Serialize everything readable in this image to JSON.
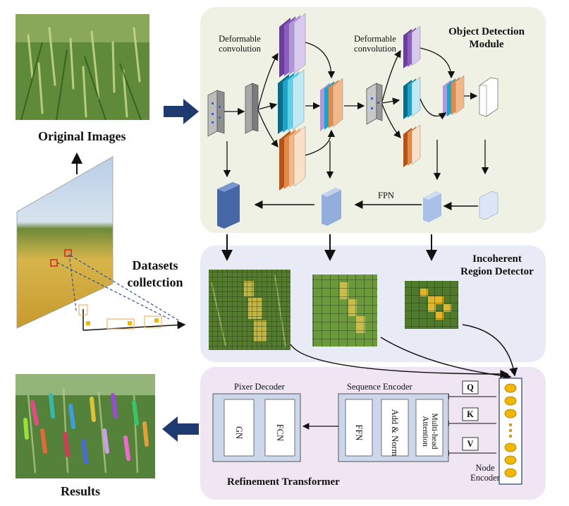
{
  "labels": {
    "original_images": "Original Images",
    "datasets_collection_line1": "Datasets",
    "datasets_collection_line2": "colletction",
    "results": "Results",
    "deformable_conv_1_line1": "Deformable",
    "deformable_conv_1_line2": "convolution",
    "deformable_conv_2_line1": "Deformable",
    "deformable_conv_2_line2": "convolution",
    "object_detection_line1": "Object Detection",
    "object_detection_line2": "Module",
    "fpn": "FPN",
    "incoherent_line1": "Incoherent",
    "incoherent_line2": "Region Detector",
    "pixel_decoder": "Pixer Decoder",
    "sequence_encoder": "Sequence Encoder",
    "gn": "GN",
    "fcn": "FCN",
    "ffn": "FFN",
    "add_norm": "Add & Norm",
    "multihead": "Multi-head Attention",
    "q": "Q",
    "k": "K",
    "v": "V",
    "node_line1": "Node",
    "node_line2": "Encoder",
    "refinement": "Refinement Transformer"
  },
  "colors": {
    "od_panel": "#eef1e3",
    "ird_panel": "#e8ebf5",
    "rt_panel": "#efe5f3",
    "big_arrow": "#1f3a6e",
    "node": "#f2b705"
  }
}
